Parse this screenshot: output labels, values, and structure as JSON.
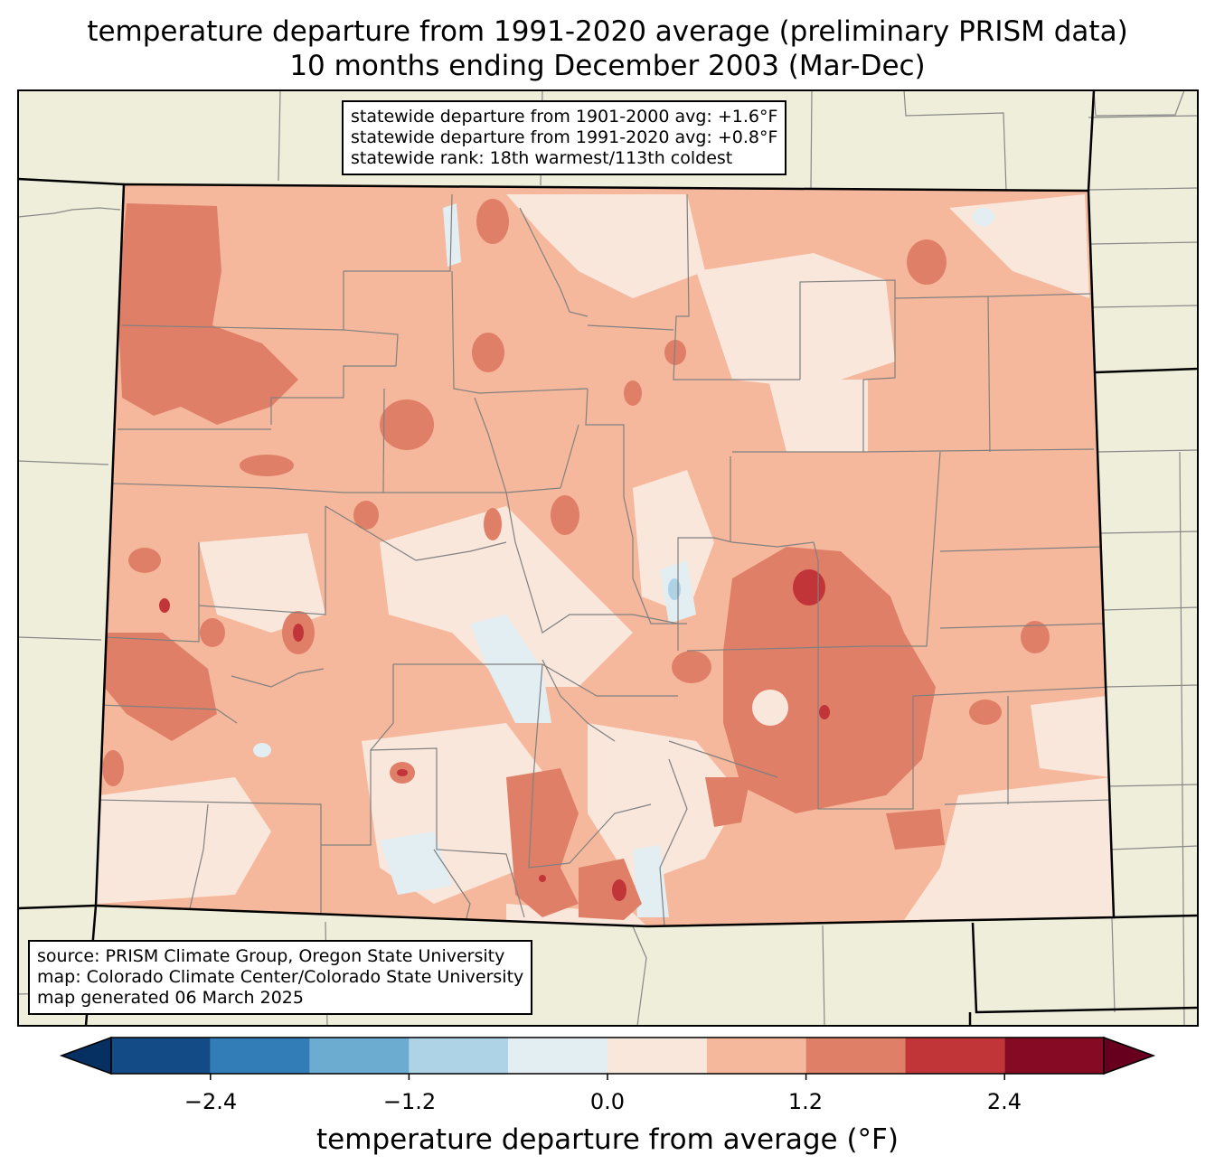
{
  "title": {
    "line1": "temperature departure from 1991-2020 average (preliminary PRISM data)",
    "line2": "10 months ending December 2003 (Mar-Dec)"
  },
  "stats": {
    "line1": "statewide departure from 1901-2000 avg: +1.6°F",
    "line2": "statewide departure from 1991-2020 avg: +0.8°F",
    "line3": "statewide rank: 18th warmest/113th coldest"
  },
  "credits": {
    "line1": "source: PRISM Climate Group, Oregon State University",
    "line2": "map: Colorado Climate Center/Colorado State University",
    "line3": "map generated 06 March 2025"
  },
  "colorbar": {
    "label": "temperature departure from average (°F)",
    "ticks": [
      "−2.4",
      "−1.2",
      "0.0",
      "1.2",
      "2.4"
    ],
    "bounds": [
      -3.0,
      -2.4,
      -1.8,
      -1.2,
      -0.6,
      0.0,
      0.6,
      1.2,
      1.8,
      2.4,
      3.0
    ],
    "colors": [
      "#053061",
      "#134b87",
      "#327db7",
      "#6bacd0",
      "#aed3e6",
      "#e3eef3",
      "#fae7dc",
      "#f6b89c",
      "#e07f67",
      "#c13539",
      "#870a24",
      "#67001f"
    ]
  },
  "map_colors": {
    "land": "#efeedb",
    "border": "#000000",
    "county": "#808080"
  }
}
